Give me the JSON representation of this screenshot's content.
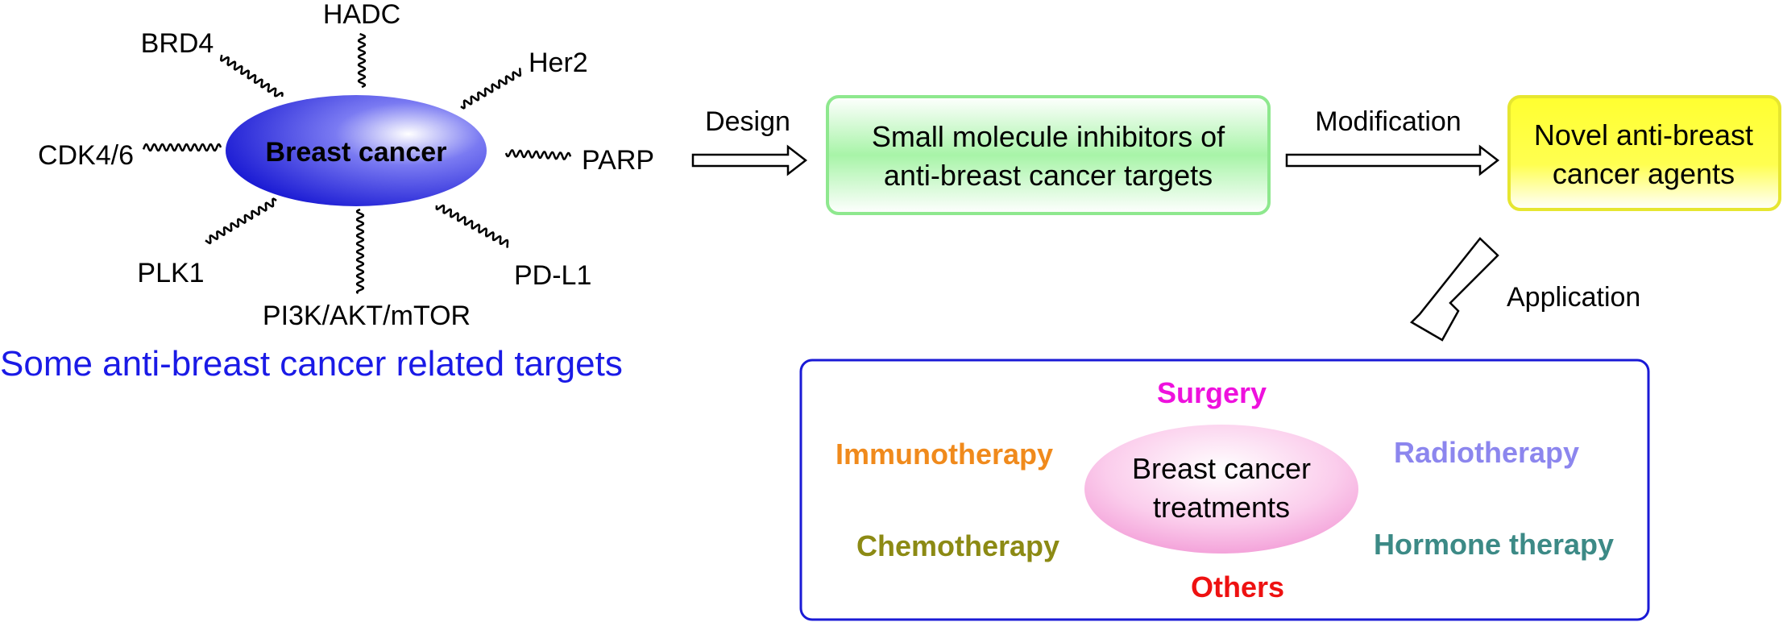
{
  "targets": {
    "center": "Breast cancer",
    "items": [
      "HADC",
      "Her2",
      "PARP",
      "PD-L1",
      "PI3K/AKT/mTOR",
      "PLK1",
      "CDK4/6",
      "BRD4"
    ],
    "caption": "Some anti-breast cancer related targets"
  },
  "flow": {
    "design_label": "Design",
    "inhibitors_line1": "Small molecule inhibitors of",
    "inhibitors_line2": "anti-breast cancer targets",
    "modification_label": "Modification",
    "agents_line1": "Novel anti-breast",
    "agents_line2": "cancer agents",
    "application_label": "Application"
  },
  "treatments": {
    "center_line1": "Breast cancer",
    "center_line2": "treatments",
    "items": [
      {
        "label": "Surgery",
        "color": "#ee11dd"
      },
      {
        "label": "Immunotherapy",
        "color": "#f08a1c"
      },
      {
        "label": "Radiotherapy",
        "color": "#8c86ee"
      },
      {
        "label": "Chemotherapy",
        "color": "#8c8a14"
      },
      {
        "label": "Hormone therapy",
        "color": "#3c8a86"
      },
      {
        "label": "Others",
        "color": "#ee1111"
      }
    ]
  },
  "colors": {
    "caption": "#1a1ae6",
    "frame": "#1a1ad6",
    "ellipse_dark": "#1010d0",
    "inhibitor_border": "#8ee88e",
    "agents_fill": "#ffff22"
  }
}
